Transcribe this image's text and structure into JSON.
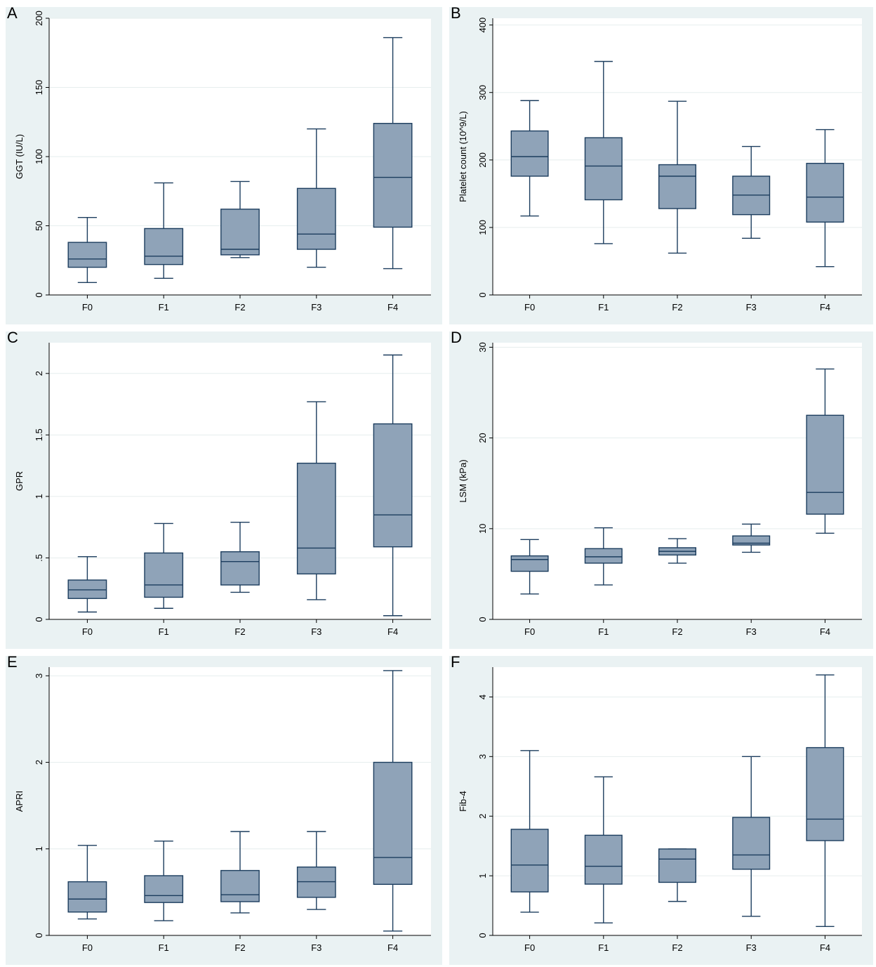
{
  "chart_data": [
    {
      "panel": "A",
      "type": "boxplot",
      "ylabel": "GGT (IU/L)",
      "categories": [
        "F0",
        "F1",
        "F2",
        "F3",
        "F4"
      ],
      "ylim": [
        0,
        200
      ],
      "yticks": [
        0,
        50,
        100,
        150,
        200
      ],
      "ytick_labels": [
        "0",
        "50",
        "100",
        "150",
        "200"
      ],
      "grid": true,
      "boxes": [
        {
          "whisker_low": 9,
          "q1": 20,
          "median": 26,
          "q3": 38,
          "whisker_high": 56
        },
        {
          "whisker_low": 12,
          "q1": 22,
          "median": 28,
          "q3": 48,
          "whisker_high": 81
        },
        {
          "whisker_low": 27,
          "q1": 29,
          "median": 33,
          "q3": 62,
          "whisker_high": 82
        },
        {
          "whisker_low": 20,
          "q1": 33,
          "median": 44,
          "q3": 77,
          "whisker_high": 120
        },
        {
          "whisker_low": 19,
          "q1": 49,
          "median": 85,
          "q3": 124,
          "whisker_high": 186
        }
      ]
    },
    {
      "panel": "B",
      "type": "boxplot",
      "ylabel": "Platelet count (10^9/L)",
      "categories": [
        "F0",
        "F1",
        "F2",
        "F3",
        "F4"
      ],
      "ylim": [
        0,
        410
      ],
      "yticks": [
        0,
        100,
        200,
        300,
        400
      ],
      "ytick_labels": [
        "0",
        "100",
        "200",
        "300",
        "400"
      ],
      "grid": true,
      "boxes": [
        {
          "whisker_low": 117,
          "q1": 176,
          "median": 205,
          "q3": 243,
          "whisker_high": 288
        },
        {
          "whisker_low": 76,
          "q1": 141,
          "median": 191,
          "q3": 233,
          "whisker_high": 346
        },
        {
          "whisker_low": 62,
          "q1": 128,
          "median": 176,
          "q3": 193,
          "whisker_high": 287
        },
        {
          "whisker_low": 84,
          "q1": 119,
          "median": 148,
          "q3": 176,
          "whisker_high": 220
        },
        {
          "whisker_low": 42,
          "q1": 108,
          "median": 145,
          "q3": 195,
          "whisker_high": 245
        }
      ]
    },
    {
      "panel": "C",
      "type": "boxplot",
      "ylabel": "GPR",
      "categories": [
        "F0",
        "F1",
        "F2",
        "F3",
        "F4"
      ],
      "ylim": [
        0,
        2.25
      ],
      "yticks": [
        0,
        0.5,
        1,
        1.5,
        2
      ],
      "ytick_labels": [
        "0",
        ".5",
        "1",
        "1.5",
        "2"
      ],
      "grid": true,
      "boxes": [
        {
          "whisker_low": 0.06,
          "q1": 0.17,
          "median": 0.24,
          "q3": 0.32,
          "whisker_high": 0.51
        },
        {
          "whisker_low": 0.09,
          "q1": 0.18,
          "median": 0.28,
          "q3": 0.54,
          "whisker_high": 0.78
        },
        {
          "whisker_low": 0.22,
          "q1": 0.28,
          "median": 0.47,
          "q3": 0.55,
          "whisker_high": 0.79
        },
        {
          "whisker_low": 0.16,
          "q1": 0.37,
          "median": 0.58,
          "q3": 1.27,
          "whisker_high": 1.77
        },
        {
          "whisker_low": 0.03,
          "q1": 0.59,
          "median": 0.85,
          "q3": 1.59,
          "whisker_high": 2.15
        }
      ]
    },
    {
      "panel": "D",
      "type": "boxplot",
      "ylabel": "LSM (kPa)",
      "categories": [
        "F0",
        "F1",
        "F2",
        "F3",
        "F4"
      ],
      "ylim": [
        0,
        30.5
      ],
      "yticks": [
        0,
        10,
        20,
        30
      ],
      "ytick_labels": [
        "0",
        "10",
        "20",
        "30"
      ],
      "grid": true,
      "boxes": [
        {
          "whisker_low": 2.8,
          "q1": 5.3,
          "median": 6.6,
          "q3": 7.0,
          "whisker_high": 8.8
        },
        {
          "whisker_low": 3.8,
          "q1": 6.2,
          "median": 6.9,
          "q3": 7.8,
          "whisker_high": 10.1
        },
        {
          "whisker_low": 6.2,
          "q1": 7.1,
          "median": 7.5,
          "q3": 7.9,
          "whisker_high": 8.9
        },
        {
          "whisker_low": 7.4,
          "q1": 8.2,
          "median": 8.4,
          "q3": 9.2,
          "whisker_high": 10.5
        },
        {
          "whisker_low": 9.5,
          "q1": 11.6,
          "median": 14.0,
          "q3": 22.5,
          "whisker_high": 27.6
        }
      ]
    },
    {
      "panel": "E",
      "type": "boxplot",
      "ylabel": "APRI",
      "categories": [
        "F0",
        "F1",
        "F2",
        "F3",
        "F4"
      ],
      "ylim": [
        0,
        3.1
      ],
      "yticks": [
        0,
        1,
        2,
        3
      ],
      "ytick_labels": [
        "0",
        "1",
        "2",
        "3"
      ],
      "grid": true,
      "boxes": [
        {
          "whisker_low": 0.19,
          "q1": 0.27,
          "median": 0.42,
          "q3": 0.62,
          "whisker_high": 1.04
        },
        {
          "whisker_low": 0.17,
          "q1": 0.38,
          "median": 0.46,
          "q3": 0.69,
          "whisker_high": 1.09
        },
        {
          "whisker_low": 0.26,
          "q1": 0.39,
          "median": 0.47,
          "q3": 0.75,
          "whisker_high": 1.2
        },
        {
          "whisker_low": 0.3,
          "q1": 0.44,
          "median": 0.62,
          "q3": 0.79,
          "whisker_high": 1.2
        },
        {
          "whisker_low": 0.05,
          "q1": 0.59,
          "median": 0.9,
          "q3": 2.0,
          "whisker_high": 3.06
        }
      ]
    },
    {
      "panel": "F",
      "type": "boxplot",
      "ylabel": "Fib-4",
      "categories": [
        "F0",
        "F1",
        "F2",
        "F3",
        "F4"
      ],
      "ylim": [
        0,
        4.5
      ],
      "yticks": [
        0,
        1,
        2,
        3,
        4
      ],
      "ytick_labels": [
        "0",
        "1",
        "2",
        "3",
        "4"
      ],
      "grid": true,
      "boxes": [
        {
          "whisker_low": 0.39,
          "q1": 0.73,
          "median": 1.18,
          "q3": 1.78,
          "whisker_high": 3.1
        },
        {
          "whisker_low": 0.21,
          "q1": 0.86,
          "median": 1.16,
          "q3": 1.68,
          "whisker_high": 2.66
        },
        {
          "whisker_low": 0.57,
          "q1": 0.89,
          "median": 1.28,
          "q3": 1.45,
          "whisker_high": 1.45
        },
        {
          "whisker_low": 0.32,
          "q1": 1.11,
          "median": 1.35,
          "q3": 1.98,
          "whisker_high": 3.0
        },
        {
          "whisker_low": 0.15,
          "q1": 1.59,
          "median": 1.95,
          "q3": 3.15,
          "whisker_high": 4.37
        }
      ]
    }
  ],
  "style": {
    "panel_background": "#eaf2f3",
    "plot_background": "#ffffff",
    "box_fill": "#8fa3b8",
    "box_stroke": "#1c3d5e",
    "grid_color": "#e6eeee",
    "axis_color": "#000000"
  }
}
